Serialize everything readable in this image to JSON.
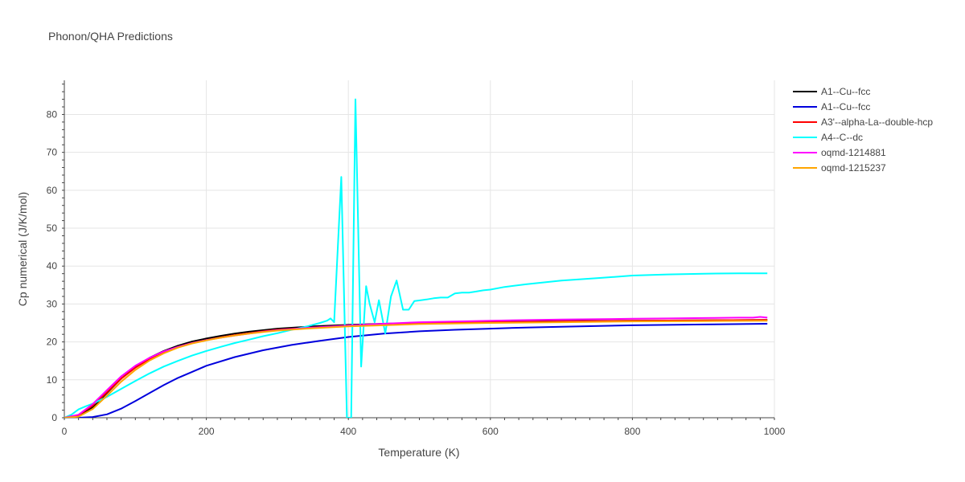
{
  "chart_data": {
    "type": "line",
    "title": "Phonon/QHA Predictions",
    "xlabel": "Temperature (K)",
    "ylabel": "Cp numerical (J/K/mol)",
    "xlim": [
      0,
      1000
    ],
    "ylim": [
      0,
      89
    ],
    "xticks": [
      0,
      200,
      400,
      600,
      800,
      1000
    ],
    "yticks": [
      0,
      10,
      20,
      30,
      40,
      50,
      60,
      70,
      80
    ],
    "grid": true,
    "legend_position": "top-right",
    "series": [
      {
        "name": "A1--Cu--fcc",
        "color": "#000000",
        "x": [
          0,
          20,
          40,
          60,
          80,
          100,
          120,
          140,
          160,
          180,
          200,
          220,
          240,
          260,
          280,
          300,
          350,
          400,
          450,
          500,
          600,
          700,
          800,
          900,
          990
        ],
        "y": [
          0,
          0.5,
          2.8,
          6.5,
          10.3,
          13.3,
          15.8,
          17.6,
          19.0,
          20.1,
          20.9,
          21.6,
          22.2,
          22.7,
          23.1,
          23.5,
          24.1,
          24.5,
          24.8,
          25.0,
          25.3,
          25.5,
          25.6,
          25.7,
          25.8
        ]
      },
      {
        "name": "A1--Cu--fcc",
        "color": "#0000dd",
        "x": [
          0,
          20,
          40,
          60,
          80,
          100,
          120,
          140,
          160,
          180,
          200,
          240,
          280,
          320,
          360,
          400,
          450,
          500,
          550,
          600,
          650,
          700,
          800,
          900,
          990
        ],
        "y": [
          0,
          0,
          0.2,
          0.9,
          2.4,
          4.4,
          6.5,
          8.6,
          10.5,
          12.1,
          13.7,
          16.0,
          17.8,
          19.2,
          20.3,
          21.3,
          22.2,
          22.8,
          23.2,
          23.5,
          23.8,
          24.0,
          24.4,
          24.6,
          24.8
        ]
      },
      {
        "name": "A3'--alpha-La--double-hcp",
        "color": "#ff0000",
        "x": [
          0,
          20,
          40,
          60,
          80,
          100,
          120,
          140,
          160,
          180,
          200,
          220,
          240,
          260,
          280,
          300,
          350,
          400,
          450,
          500,
          600,
          700,
          800,
          900,
          990
        ],
        "y": [
          0,
          0.7,
          3.2,
          6.7,
          10.3,
          13.2,
          15.5,
          17.3,
          18.7,
          19.7,
          20.5,
          21.2,
          21.8,
          22.3,
          22.8,
          23.2,
          23.8,
          24.3,
          24.6,
          24.9,
          25.2,
          25.4,
          25.6,
          25.7,
          25.8
        ]
      },
      {
        "name": "A4--C--dc",
        "color": "#00ffff",
        "x": [
          0,
          10,
          20,
          30,
          40,
          60,
          80,
          100,
          120,
          140,
          160,
          180,
          200,
          220,
          240,
          260,
          280,
          300,
          320,
          340,
          360,
          370,
          375,
          380,
          390,
          398,
          404,
          410,
          418,
          425,
          430,
          437,
          443,
          452,
          460,
          468,
          477,
          485,
          493,
          502,
          510,
          520,
          530,
          540,
          550,
          560,
          570,
          580,
          590,
          600,
          620,
          650,
          700,
          750,
          800,
          850,
          900,
          950,
          990
        ],
        "y": [
          0,
          0.8,
          2.2,
          3.0,
          3.7,
          5.5,
          7.6,
          9.7,
          11.7,
          13.5,
          15.0,
          16.4,
          17.6,
          18.7,
          19.7,
          20.6,
          21.5,
          22.3,
          23.2,
          24.0,
          25.0,
          25.6,
          26.2,
          25.2,
          63.5,
          0,
          0,
          84.0,
          13.5,
          34.7,
          30.0,
          25.2,
          31.0,
          22.2,
          32.0,
          36.2,
          28.5,
          28.5,
          30.8,
          31.0,
          31.2,
          31.5,
          31.7,
          31.7,
          32.8,
          33.0,
          33.0,
          33.3,
          33.6,
          33.8,
          34.5,
          35.2,
          36.2,
          36.8,
          37.5,
          37.8,
          38.0,
          38.1,
          38.1
        ]
      },
      {
        "name": "oqmd-1214881",
        "color": "#ff00ff",
        "x": [
          0,
          20,
          40,
          60,
          80,
          100,
          120,
          140,
          160,
          180,
          200,
          220,
          240,
          260,
          280,
          300,
          350,
          400,
          450,
          500,
          600,
          700,
          800,
          850,
          900,
          950,
          970,
          980,
          990
        ],
        "y": [
          0,
          0.8,
          3.6,
          7.3,
          10.9,
          13.7,
          15.8,
          17.5,
          18.7,
          19.7,
          20.5,
          21.1,
          21.7,
          22.2,
          22.7,
          23.1,
          23.8,
          24.3,
          24.8,
          25.2,
          25.6,
          25.9,
          26.1,
          26.2,
          26.3,
          26.4,
          26.4,
          26.6,
          26.4
        ]
      },
      {
        "name": "oqmd-1215237",
        "color": "#ffa500",
        "x": [
          0,
          20,
          40,
          60,
          80,
          100,
          120,
          140,
          160,
          180,
          200,
          220,
          240,
          260,
          280,
          300,
          350,
          400,
          450,
          500,
          600,
          700,
          800,
          900,
          990
        ],
        "y": [
          0,
          0.3,
          2.3,
          5.8,
          9.5,
          12.6,
          15.1,
          17.0,
          18.5,
          19.6,
          20.4,
          21.1,
          21.7,
          22.2,
          22.6,
          23.0,
          23.6,
          24.1,
          24.4,
          24.7,
          25.0,
          25.2,
          25.4,
          25.5,
          25.6
        ]
      }
    ]
  }
}
